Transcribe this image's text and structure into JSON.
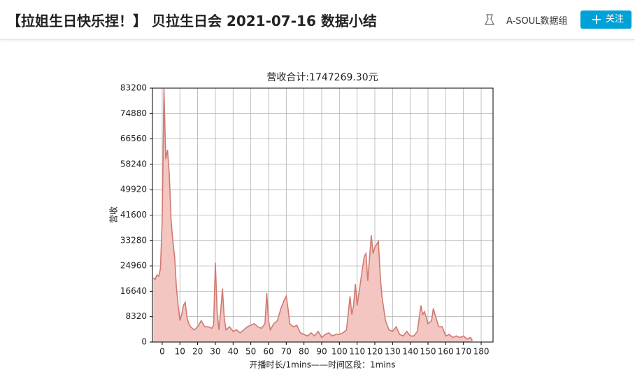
{
  "header": {
    "title": "【拉姐生日快乐捏！】 贝拉生日会 2021-07-16 数据小结",
    "author": "A-SOUL数据组",
    "follow": "关注"
  },
  "chart_data": {
    "type": "area",
    "title": "营收合计:1747269.30元",
    "x_label": "开播时长/1mins——时间区段：1mins",
    "y_label": "营收",
    "x": [
      -5,
      -4,
      -3,
      -2,
      -1,
      0,
      1,
      2,
      3,
      4,
      5,
      6,
      7,
      8,
      9,
      10,
      11,
      12,
      13,
      14,
      15,
      16,
      18,
      20,
      22,
      24,
      26,
      28,
      29,
      30,
      31,
      32,
      33,
      34,
      35,
      36,
      38,
      40,
      42,
      44,
      46,
      48,
      50,
      52,
      54,
      56,
      58,
      59,
      60,
      61,
      63,
      65,
      67,
      69,
      70,
      71,
      72,
      74,
      76,
      78,
      80,
      82,
      84,
      86,
      88,
      90,
      92,
      94,
      96,
      98,
      100,
      102,
      104,
      106,
      107,
      108,
      109,
      110,
      112,
      114,
      115,
      116,
      118,
      119,
      120,
      121,
      122,
      123,
      124,
      126,
      128,
      130,
      132,
      134,
      136,
      138,
      140,
      142,
      144,
      146,
      147,
      148,
      150,
      152,
      153,
      155,
      156,
      158,
      160,
      162,
      164,
      166,
      168,
      170,
      172,
      174,
      175
    ],
    "series": [
      {
        "color": "#d07a72",
        "fill": "#f3c6c2",
        "values": [
          21000,
          20500,
          22000,
          21500,
          24000,
          40000,
          83000,
          60000,
          63000,
          55000,
          40000,
          33000,
          28000,
          18000,
          12000,
          7000,
          9000,
          12000,
          13000,
          8000,
          6000,
          5000,
          4000,
          5000,
          7000,
          5000,
          5000,
          4500,
          5500,
          26000,
          10000,
          4000,
          10000,
          17500,
          8000,
          4000,
          5000,
          3500,
          4000,
          3000,
          4000,
          5000,
          5500,
          6000,
          5000,
          4500,
          6000,
          16000,
          7000,
          4000,
          6000,
          7000,
          11000,
          14000,
          15000,
          11000,
          6000,
          5000,
          5500,
          3000,
          2500,
          2000,
          3000,
          2000,
          3500,
          1500,
          2500,
          3000,
          2000,
          2500,
          2500,
          3000,
          4000,
          15000,
          9000,
          12000,
          19000,
          12000,
          20000,
          28000,
          29000,
          20000,
          35000,
          29000,
          31000,
          32000,
          33000,
          22000,
          15000,
          7000,
          4000,
          3500,
          5000,
          2500,
          2000,
          3500,
          2000,
          2000,
          3500,
          12000,
          9000,
          10000,
          6000,
          7000,
          11000,
          7000,
          5000,
          5000,
          2000,
          2500,
          1500,
          2000,
          1500,
          2000,
          1000,
          1500,
          500
        ]
      }
    ],
    "xlim": [
      -5.5,
      186.7
    ],
    "ylim": [
      0,
      83200
    ],
    "xticks": [
      0,
      10,
      20,
      30,
      40,
      50,
      60,
      70,
      80,
      90,
      100,
      110,
      120,
      130,
      140,
      150,
      160,
      170,
      180
    ],
    "yticks": [
      0,
      8320,
      16640,
      24960,
      33280,
      41600,
      49920,
      58240,
      66560,
      74880,
      83200
    ],
    "grid": true
  }
}
